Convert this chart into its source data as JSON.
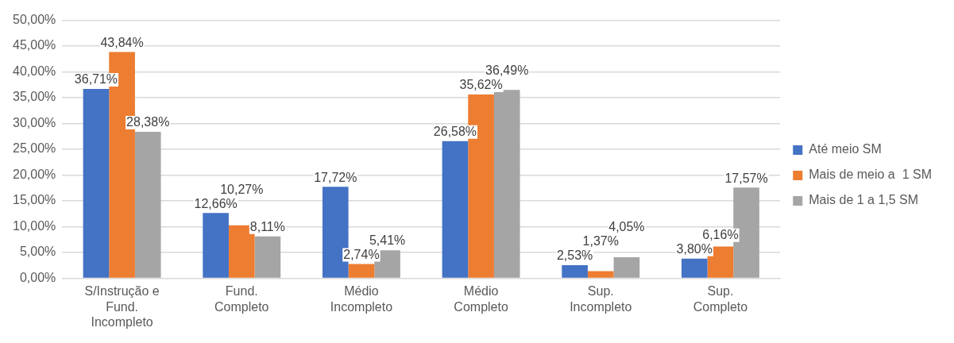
{
  "chart_data": {
    "type": "bar",
    "categories": [
      "S/Instrução e\nFund.\nIncompleto",
      "Fund.\nCompleto",
      "Médio\nIncompleto",
      "Médio\nCompleto",
      "Sup.\nIncompleto",
      "Sup.\nCompleto"
    ],
    "series": [
      {
        "name": "Até meio SM",
        "color": "#4472c4",
        "values": [
          36.71,
          12.66,
          17.72,
          26.58,
          2.53,
          3.8
        ],
        "value_labels": [
          "36,71%",
          "12,66%",
          "17,72%",
          "26,58%",
          "2,53%",
          "3,80%"
        ]
      },
      {
        "name": "Mais de meio a  1 SM",
        "color": "#ed7d31",
        "values": [
          43.84,
          10.27,
          2.74,
          35.62,
          1.37,
          6.16
        ],
        "value_labels": [
          "43,84%",
          "10,27%",
          "2,74%",
          "35,62%",
          "1,37%",
          "6,16%"
        ]
      },
      {
        "name": "Mais de 1 a 1,5 SM",
        "color": "#a5a5a5",
        "values": [
          28.38,
          8.11,
          5.41,
          36.49,
          4.05,
          17.57
        ],
        "value_labels": [
          "28,38%",
          "8,11%",
          "5,41%",
          "36,49%",
          "4,05%",
          "17,57%"
        ]
      }
    ],
    "ylim": [
      0,
      50
    ],
    "yticks": [
      {
        "value": 0,
        "label": "0,00%"
      },
      {
        "value": 5,
        "label": "5,00%"
      },
      {
        "value": 10,
        "label": "10,00%"
      },
      {
        "value": 15,
        "label": "15,00%"
      },
      {
        "value": 20,
        "label": "20,00%"
      },
      {
        "value": 25,
        "label": "25,00%"
      },
      {
        "value": 30,
        "label": "30,00%"
      },
      {
        "value": 35,
        "label": "35,00%"
      },
      {
        "value": 40,
        "label": "40,00%"
      },
      {
        "value": 45,
        "label": "45,00%"
      },
      {
        "value": 50,
        "label": "50,00%"
      }
    ],
    "grid": "y",
    "legend": "right"
  }
}
